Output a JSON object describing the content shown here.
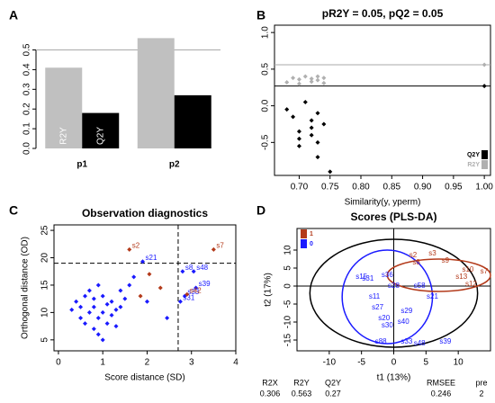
{
  "chart_data": [
    {
      "panel_label": "A",
      "type": "bar",
      "categories": [
        "p1",
        "p2"
      ],
      "series": [
        {
          "name": "R2Y",
          "color": "#c0c0c0",
          "values": [
            0.41,
            0.56
          ]
        },
        {
          "name": "Q2Y",
          "color": "#000000",
          "values": [
            0.18,
            0.27
          ]
        }
      ],
      "ylim": [
        0,
        0.58
      ],
      "yticks": [
        {
          "value": 0,
          "label": "0.0"
        },
        {
          "value": 0.1,
          "label": "0.1"
        },
        {
          "value": 0.2,
          "label": "0.2"
        },
        {
          "value": 0.3,
          "label": "0.3"
        },
        {
          "value": 0.4,
          "label": "0.4"
        },
        {
          "value": 0.5,
          "label": "0.5"
        }
      ],
      "hlines": [
        {
          "value": 0.5,
          "color": "#aaaaaa"
        }
      ]
    },
    {
      "panel_label": "B",
      "type": "scatter",
      "title": "pR2Y = 0.05, pQ2 = 0.05",
      "xlabel": "Similarity(y, yperm)",
      "shape": "diamond",
      "box": true,
      "legend": "bottom-right",
      "xlim": [
        0.66,
        1.01
      ],
      "xticks": [
        {
          "value": 0.7,
          "label": "0.70"
        },
        {
          "value": 0.75,
          "label": "0.75"
        },
        {
          "value": 0.8,
          "label": "0.80"
        },
        {
          "value": 0.85,
          "label": "0.85"
        },
        {
          "value": 0.9,
          "label": "0.90"
        },
        {
          "value": 0.95,
          "label": "0.95"
        },
        {
          "value": 1,
          "label": "1.00"
        }
      ],
      "ylim": [
        -0.95,
        1.1
      ],
      "yticks": [
        -0.5,
        {
          "value": 0,
          "label": "0.0"
        },
        0.5,
        {
          "value": 1,
          "label": "1.0"
        }
      ],
      "hlines": [
        {
          "value": 0.56,
          "color": "#aaaaaa"
        },
        {
          "value": 0.27,
          "color": "#000000"
        }
      ],
      "series": [
        {
          "name": "Q2Y",
          "color": "#000000",
          "x": [
            0.68,
            0.69,
            0.7,
            0.7,
            0.7,
            0.71,
            0.72,
            0.72,
            0.72,
            0.73,
            0.73,
            0.73,
            0.74,
            0.75,
            1.0
          ],
          "values": [
            -0.05,
            -0.15,
            -0.35,
            -0.45,
            -0.55,
            0.05,
            -0.2,
            -0.3,
            -0.4,
            -0.1,
            -0.5,
            -0.7,
            -0.25,
            -0.9,
            0.27
          ]
        },
        {
          "name": "R2Y",
          "color": "#b0b0b0",
          "x": [
            0.68,
            0.69,
            0.7,
            0.7,
            0.71,
            0.72,
            0.72,
            0.73,
            0.73,
            0.74,
            0.74,
            1.0
          ],
          "values": [
            0.32,
            0.38,
            0.3,
            0.36,
            0.4,
            0.33,
            0.37,
            0.35,
            0.4,
            0.31,
            0.38,
            0.56
          ]
        }
      ]
    },
    {
      "panel_label": "C",
      "type": "scatter",
      "title": "Observation diagnostics",
      "xlabel": "Score distance (SD)",
      "ylabel": "Orthogonal distance (OD)",
      "shape": "diamond",
      "box": true,
      "xlim": [
        -0.1,
        4
      ],
      "xticks": [
        0,
        1,
        2,
        3,
        4
      ],
      "ylim": [
        3,
        26
      ],
      "yticks": [
        5,
        10,
        15,
        20,
        25
      ],
      "hlines": [
        {
          "value": 19,
          "color": "#000000",
          "dash": true
        }
      ],
      "vlines": [
        {
          "value": 2.7,
          "color": "#000000",
          "dash": true
        }
      ],
      "series": [
        {
          "color": "#1a1aff",
          "x": [
            0.3,
            0.4,
            0.5,
            0.5,
            0.6,
            0.6,
            0.7,
            0.7,
            0.8,
            0.8,
            0.8,
            0.9,
            0.9,
            0.9,
            1.0,
            1.0,
            1.0,
            1.1,
            1.1,
            1.2,
            1.2,
            1.3,
            1.3,
            1.4,
            1.4,
            1.5,
            1.6,
            1.7,
            1.9,
            2.0,
            2.8,
            2.75,
            3.1,
            3.05,
            2.85,
            2.45
          ],
          "values": [
            10.5,
            12,
            9,
            11,
            13,
            8,
            10,
            14,
            7,
            11,
            12.5,
            6,
            9,
            15,
            5,
            10,
            13,
            8,
            11.5,
            9.5,
            12,
            7.5,
            10.5,
            14,
            11,
            12.5,
            15,
            16.5,
            19.3,
            12,
            17.5,
            12,
            14.5,
            17.5,
            13,
            9
          ],
          "point_labels": [
            null,
            null,
            null,
            null,
            null,
            null,
            null,
            null,
            null,
            null,
            null,
            null,
            null,
            null,
            null,
            null,
            null,
            null,
            null,
            null,
            null,
            null,
            null,
            null,
            null,
            null,
            null,
            null,
            "s21",
            null,
            "s8",
            "s31",
            "s39",
            "s48",
            "s33",
            null
          ]
        },
        {
          "color": "#b33a1a",
          "x": [
            1.6,
            3.5,
            2.05,
            2.3,
            1.85,
            2.9
          ],
          "values": [
            21.5,
            21.5,
            17,
            14.5,
            13,
            13.3
          ],
          "point_labels": [
            "s2",
            "s7",
            null,
            null,
            null,
            "s42"
          ]
        }
      ]
    },
    {
      "panel_label": "D",
      "type": "scatter",
      "title": "Scores (PLS-DA)",
      "xlabel": "t1 (13%)",
      "ylabel": "t2 (17%)",
      "marker": "text",
      "box": true,
      "zero_lines": true,
      "legend": "top-left",
      "xlim": [
        -15,
        15
      ],
      "xticks": [
        -10,
        -5,
        0,
        5,
        10
      ],
      "ylim": [
        -18,
        16
      ],
      "yticks": [
        -15,
        -10,
        -5,
        0,
        5,
        10
      ],
      "ellipses": [
        {
          "cx": 0,
          "cy": -2,
          "rx": 13,
          "ry": 15,
          "color": "#000000"
        },
        {
          "cx": -1,
          "cy": -3,
          "rx": 7,
          "ry": 13,
          "color": "#1a1aff"
        },
        {
          "cx": 7,
          "cy": 3,
          "rx": 8,
          "ry": 4.5,
          "color": "#b33a1a"
        }
      ],
      "series": [
        {
          "name": "1",
          "color": "#b33a1a",
          "x": [
            3,
            6,
            3.5,
            8,
            11.5,
            14,
            10.5,
            12
          ],
          "values": [
            8.5,
            9,
            6.5,
            7,
            4.5,
            4,
            2.5,
            0.5
          ],
          "point_labels": [
            "s2",
            "s3",
            "s8",
            "s9",
            "s10",
            "s7",
            "s13",
            "s12"
          ]
        },
        {
          "name": "0",
          "color": "#1a1aff",
          "x": [
            -1,
            6,
            2,
            1.5,
            8,
            2,
            4,
            -2,
            -4,
            0,
            4,
            -1.5,
            -3,
            -1,
            -5,
            -2.5
          ],
          "values": [
            3,
            -3,
            -7,
            -10,
            -15.5,
            -15.5,
            -16,
            -15.5,
            2,
            0,
            0,
            -9,
            -3,
            -11,
            2.5,
            -6
          ],
          "point_labels": [
            "s36",
            "s21",
            "s29",
            "s40",
            "s39",
            "s33",
            "s48",
            "s88",
            "s31",
            "s28",
            "s58",
            "s20",
            "s11",
            "s30",
            "s15",
            "s27"
          ]
        }
      ]
    }
  ],
  "table": {
    "headers": [
      "R2X",
      "R2Y",
      "Q2Y",
      "RMSEE",
      "pre"
    ],
    "rows": [
      [
        0.306,
        0.563,
        0.27,
        0.246,
        2
      ]
    ]
  }
}
